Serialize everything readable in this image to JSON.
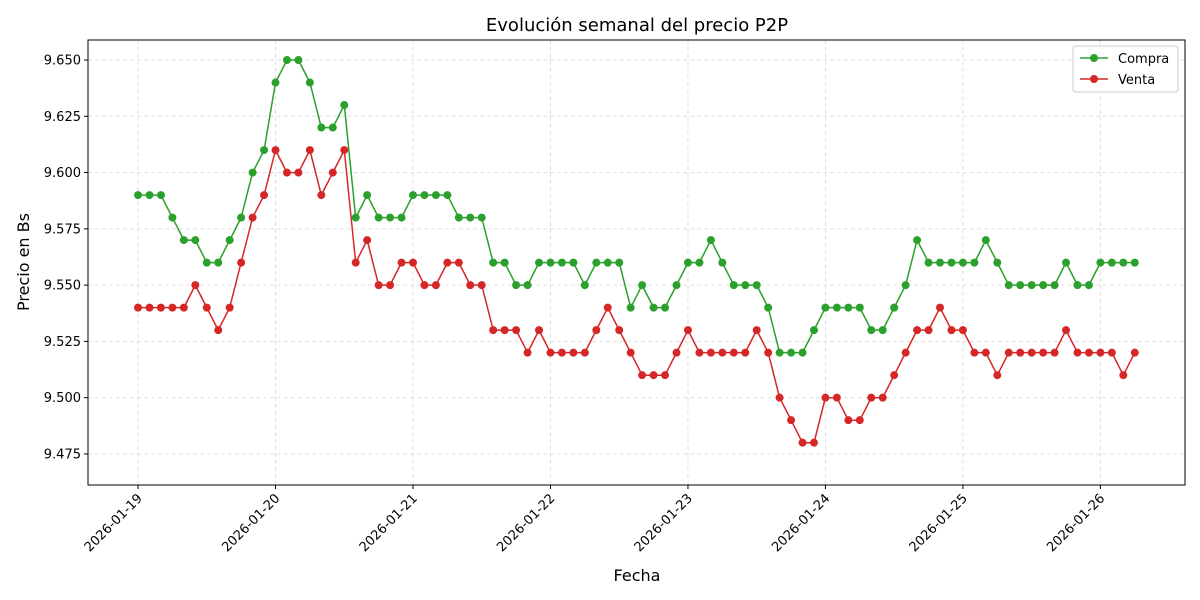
{
  "chart_data": {
    "type": "line",
    "title": "Evolución semanal del precio P2P",
    "xlabel": "Fecha",
    "ylabel": "Precio en Bs",
    "xlim": [
      "2026-01-18 15:16",
      "2026-01-26 14:46"
    ],
    "ylim": [
      9.4612,
      9.6589
    ],
    "grid": true,
    "legend_position": "top-right",
    "x_ticks": [
      "2026-01-19",
      "2026-01-20",
      "2026-01-21",
      "2026-01-22",
      "2026-01-23",
      "2026-01-24",
      "2026-01-25",
      "2026-01-26"
    ],
    "y_ticks": [
      "9.475",
      "9.500",
      "9.525",
      "9.550",
      "9.575",
      "9.600",
      "9.625",
      "9.650"
    ],
    "x": [
      "2026-01-19 00:00",
      "2026-01-19 02:00",
      "2026-01-19 04:00",
      "2026-01-19 06:00",
      "2026-01-19 08:00",
      "2026-01-19 10:00",
      "2026-01-19 12:00",
      "2026-01-19 14:00",
      "2026-01-19 16:00",
      "2026-01-19 18:00",
      "2026-01-19 20:00",
      "2026-01-19 22:00",
      "2026-01-20 00:00",
      "2026-01-20 02:00",
      "2026-01-20 04:00",
      "2026-01-20 06:00",
      "2026-01-20 08:00",
      "2026-01-20 10:00",
      "2026-01-20 12:00",
      "2026-01-20 14:00",
      "2026-01-20 16:00",
      "2026-01-20 18:00",
      "2026-01-20 20:00",
      "2026-01-20 22:00",
      "2026-01-21 00:00",
      "2026-01-21 02:00",
      "2026-01-21 04:00",
      "2026-01-21 06:00",
      "2026-01-21 08:00",
      "2026-01-21 10:00",
      "2026-01-21 12:00",
      "2026-01-21 14:00",
      "2026-01-21 16:00",
      "2026-01-21 18:00",
      "2026-01-21 20:00",
      "2026-01-21 22:00",
      "2026-01-22 00:00",
      "2026-01-22 02:00",
      "2026-01-22 04:00",
      "2026-01-22 06:00",
      "2026-01-22 08:00",
      "2026-01-22 10:00",
      "2026-01-22 12:00",
      "2026-01-22 14:00",
      "2026-01-22 16:00",
      "2026-01-22 18:00",
      "2026-01-22 20:00",
      "2026-01-22 22:00",
      "2026-01-23 00:00",
      "2026-01-23 02:00",
      "2026-01-23 04:00",
      "2026-01-23 06:00",
      "2026-01-23 08:00",
      "2026-01-23 10:00",
      "2026-01-23 12:00",
      "2026-01-23 14:00",
      "2026-01-23 16:00",
      "2026-01-23 18:00",
      "2026-01-23 20:00",
      "2026-01-23 22:00",
      "2026-01-24 00:00",
      "2026-01-24 02:00",
      "2026-01-24 04:00",
      "2026-01-24 06:00",
      "2026-01-24 08:00",
      "2026-01-24 10:00",
      "2026-01-24 12:00",
      "2026-01-24 14:00",
      "2026-01-24 16:00",
      "2026-01-24 18:00",
      "2026-01-24 20:00",
      "2026-01-24 22:00",
      "2026-01-25 00:00",
      "2026-01-25 02:00",
      "2026-01-25 04:00",
      "2026-01-25 06:00",
      "2026-01-25 08:00",
      "2026-01-25 10:00",
      "2026-01-25 12:00",
      "2026-01-25 14:00",
      "2026-01-25 16:00",
      "2026-01-25 18:00",
      "2026-01-25 20:00",
      "2026-01-25 22:00",
      "2026-01-26 00:00",
      "2026-01-26 02:00",
      "2026-01-26 04:00",
      "2026-01-26 06:00"
    ],
    "series": [
      {
        "name": "Compra",
        "color": "#2ca02c",
        "values": [
          9.59,
          9.59,
          9.59,
          9.58,
          9.57,
          9.57,
          9.56,
          9.56,
          9.57,
          9.58,
          9.6,
          9.61,
          9.64,
          9.65,
          9.65,
          9.64,
          9.62,
          9.62,
          9.63,
          9.58,
          9.59,
          9.58,
          9.58,
          9.58,
          9.59,
          9.59,
          9.59,
          9.59,
          9.58,
          9.58,
          9.58,
          9.56,
          9.56,
          9.55,
          9.55,
          9.56,
          9.56,
          9.56,
          9.56,
          9.55,
          9.56,
          9.56,
          9.56,
          9.54,
          9.55,
          9.54,
          9.54,
          9.55,
          9.56,
          9.56,
          9.57,
          9.56,
          9.55,
          9.55,
          9.55,
          9.54,
          9.52,
          9.52,
          9.52,
          9.53,
          9.54,
          9.54,
          9.54,
          9.54,
          9.53,
          9.53,
          9.54,
          9.55,
          9.57,
          9.56,
          9.56,
          9.56,
          9.56,
          9.56,
          9.57,
          9.56,
          9.55,
          9.55,
          9.55,
          9.55,
          9.55,
          9.56,
          9.55,
          9.55,
          9.56,
          9.56,
          9.56,
          9.56
        ]
      },
      {
        "name": "Venta",
        "color": "#d62728",
        "values": [
          9.54,
          9.54,
          9.54,
          9.54,
          9.54,
          9.55,
          9.54,
          9.53,
          9.54,
          9.56,
          9.58,
          9.59,
          9.61,
          9.6,
          9.6,
          9.61,
          9.59,
          9.6,
          9.61,
          9.56,
          9.57,
          9.55,
          9.55,
          9.56,
          9.56,
          9.55,
          9.55,
          9.56,
          9.56,
          9.55,
          9.55,
          9.53,
          9.53,
          9.53,
          9.52,
          9.53,
          9.52,
          9.52,
          9.52,
          9.52,
          9.53,
          9.54,
          9.53,
          9.52,
          9.51,
          9.51,
          9.51,
          9.52,
          9.53,
          9.52,
          9.52,
          9.52,
          9.52,
          9.52,
          9.53,
          9.52,
          9.5,
          9.49,
          9.48,
          9.48,
          9.5,
          9.5,
          9.49,
          9.49,
          9.5,
          9.5,
          9.51,
          9.52,
          9.53,
          9.53,
          9.54,
          9.53,
          9.53,
          9.52,
          9.52,
          9.51,
          9.52,
          9.52,
          9.52,
          9.52,
          9.52,
          9.53,
          9.52,
          9.52,
          9.52,
          9.52,
          9.51,
          9.52
        ]
      }
    ]
  }
}
